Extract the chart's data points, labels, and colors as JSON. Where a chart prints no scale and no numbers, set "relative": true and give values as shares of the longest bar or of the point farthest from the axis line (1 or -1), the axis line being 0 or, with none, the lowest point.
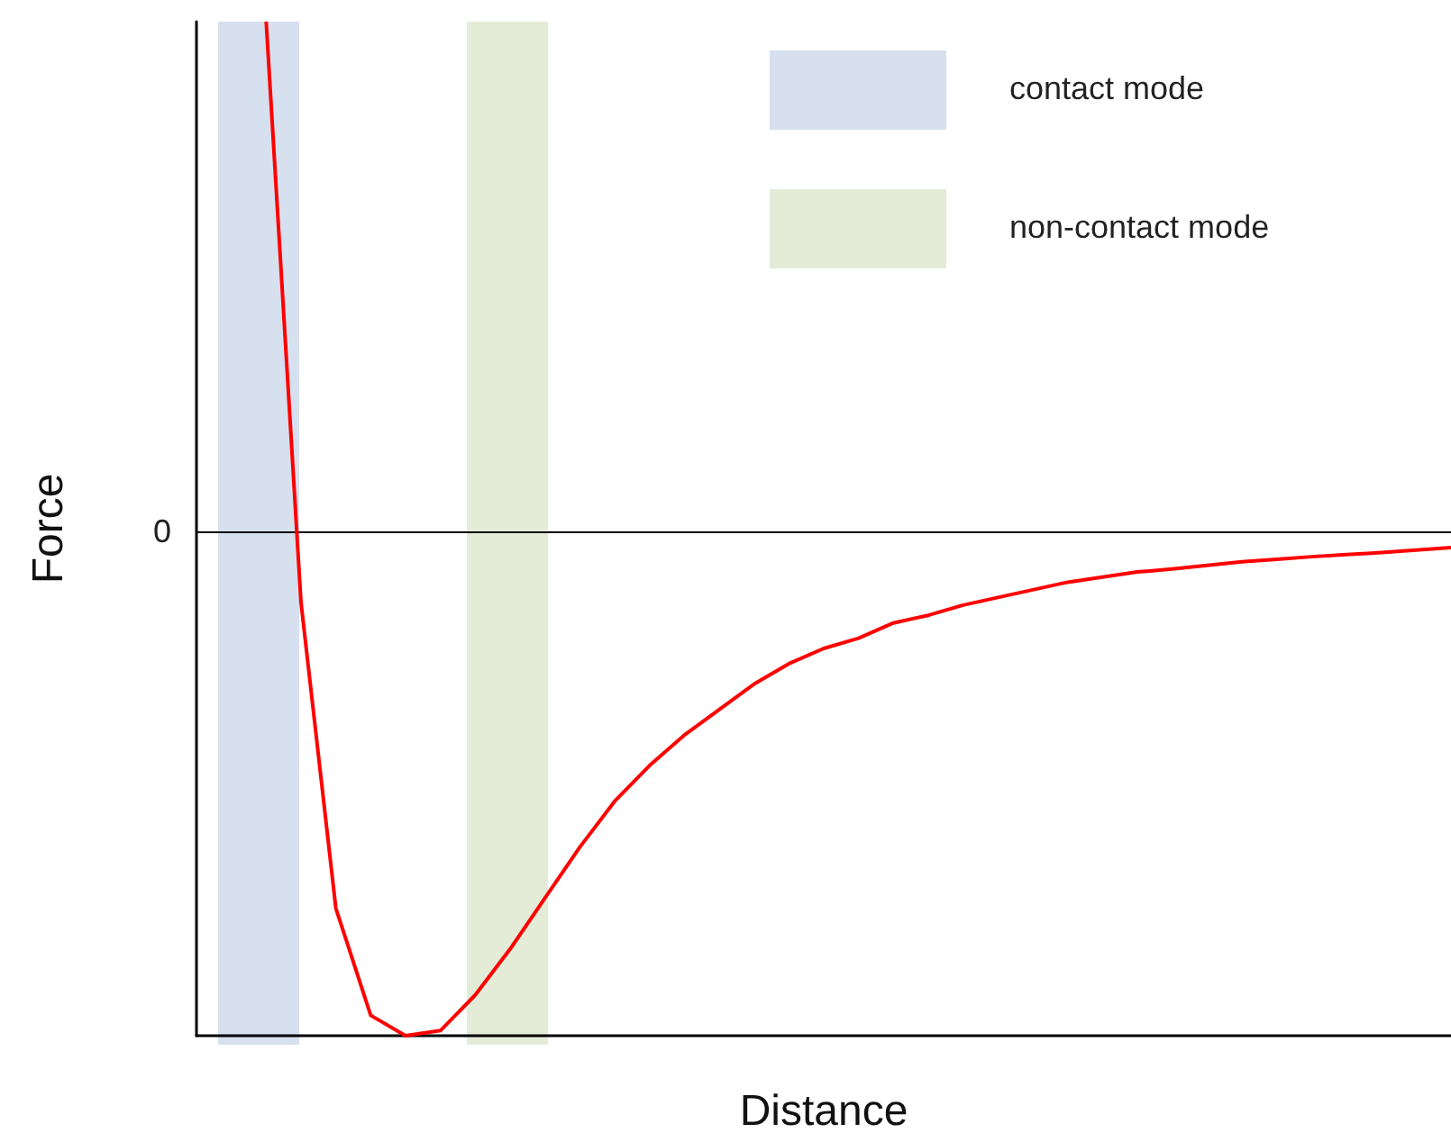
{
  "chart_data": {
    "type": "line",
    "xlabel": "Distance",
    "ylabel": "Force",
    "relative": true,
    "tick_labels": false,
    "marker": "none",
    "line_style": "solid",
    "categories": [
      null,
      null,
      null,
      null,
      null,
      null,
      null,
      null,
      null,
      null,
      null,
      null,
      null,
      null,
      null,
      null,
      null,
      null,
      null,
      null,
      null,
      null,
      null,
      null,
      null,
      null,
      null,
      null,
      null,
      null,
      null,
      null,
      null,
      null,
      null,
      null,
      null
    ],
    "series": [
      {
        "color": "#ff0000",
        "values": [
          null,
          null,
          1.0,
          -0.14,
          -0.74,
          -0.95,
          -0.99,
          -0.98,
          -0.91,
          -0.82,
          -0.72,
          -0.62,
          -0.53,
          -0.46,
          -0.4,
          -0.35,
          -0.3,
          -0.26,
          -0.23,
          -0.21,
          -0.18,
          -0.165,
          -0.145,
          -0.13,
          -0.115,
          -0.1,
          -0.09,
          -0.08,
          -0.074,
          -0.067,
          -0.06,
          -0.055,
          -0.05,
          -0.046,
          -0.042,
          -0.037,
          -0.032
        ]
      }
    ],
    "ref_lines": [
      {
        "axis": "y",
        "value": 0,
        "label": "0",
        "color": "#000000"
      }
    ],
    "annotations": [
      "contact mode",
      "non-contact mode"
    ]
  }
}
